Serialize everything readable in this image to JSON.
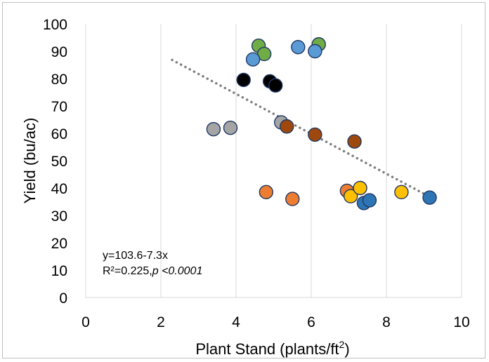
{
  "chart_data": {
    "type": "scatter",
    "title": "",
    "xlabel": "Plant Stand (plants/ft",
    "xlabel_superscript": "2",
    "xlabel_suffix": ")",
    "ylabel": "Yield (bu/ac)",
    "xlim": [
      0,
      10
    ],
    "ylim": [
      0,
      100
    ],
    "x_ticks": [
      0,
      2,
      4,
      6,
      8,
      10
    ],
    "y_ticks": [
      0,
      10,
      20,
      30,
      40,
      50,
      60,
      70,
      80,
      90,
      100
    ],
    "grid": "vertical",
    "legend": "none",
    "series": [
      {
        "color": "#70ad47",
        "points": [
          {
            "x": 4.6,
            "y": 92
          },
          {
            "x": 4.75,
            "y": 89
          },
          {
            "x": 6.2,
            "y": 92.5
          }
        ]
      },
      {
        "color": "#5b9bd5",
        "points": [
          {
            "x": 4.45,
            "y": 87
          },
          {
            "x": 5.65,
            "y": 91.5
          },
          {
            "x": 6.1,
            "y": 90
          }
        ]
      },
      {
        "color": "#000000",
        "points": [
          {
            "x": 4.2,
            "y": 79.5
          },
          {
            "x": 4.9,
            "y": 79
          },
          {
            "x": 5.05,
            "y": 77.5
          }
        ]
      },
      {
        "color": "#a5a5a5",
        "points": [
          {
            "x": 3.4,
            "y": 61.5
          },
          {
            "x": 3.85,
            "y": 62
          },
          {
            "x": 5.2,
            "y": 64
          }
        ]
      },
      {
        "color": "#9e480e",
        "points": [
          {
            "x": 5.35,
            "y": 62.5
          },
          {
            "x": 6.1,
            "y": 59.5
          },
          {
            "x": 7.15,
            "y": 57
          }
        ]
      },
      {
        "color": "#ed7d31",
        "points": [
          {
            "x": 4.8,
            "y": 38.5
          },
          {
            "x": 5.5,
            "y": 36
          },
          {
            "x": 6.95,
            "y": 39
          }
        ]
      },
      {
        "color": "#ffc000",
        "points": [
          {
            "x": 7.05,
            "y": 37
          },
          {
            "x": 7.3,
            "y": 40
          },
          {
            "x": 8.4,
            "y": 38.5
          }
        ]
      },
      {
        "color": "#2e75b6",
        "points": [
          {
            "x": 7.4,
            "y": 34.5
          },
          {
            "x": 7.55,
            "y": 35.5
          },
          {
            "x": 9.15,
            "y": 36.5
          }
        ]
      }
    ],
    "trendline": {
      "style": "dotted",
      "color": "#7f7f7f",
      "intercept": 103.6,
      "slope": -7.3,
      "x_range": [
        2.3,
        9.1
      ]
    },
    "annotations": {
      "equation": "y=103.6-7.3x",
      "r2_prefix": "R²=0.225,",
      "p_value": "p <0.0001"
    }
  }
}
